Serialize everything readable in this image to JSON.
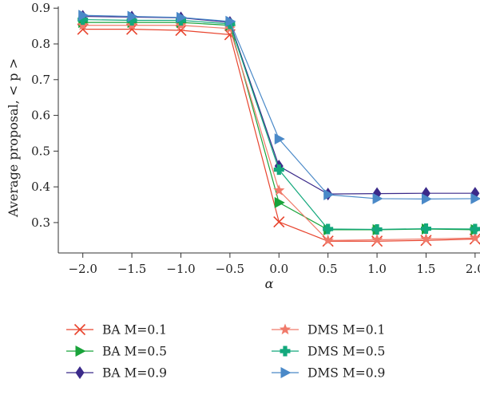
{
  "chart_data": {
    "type": "line",
    "xlabel": "α",
    "ylabel": "Average proposal, < p >",
    "x": [
      -2.0,
      -1.5,
      -1.0,
      -0.5,
      0.0,
      0.5,
      1.0,
      1.5,
      2.0
    ],
    "x_tick_labels": [
      "−2.0",
      "−1.5",
      "−1.0",
      "−0.5",
      "0.0",
      "0.5",
      "1.0",
      "1.5",
      "2.0"
    ],
    "y_ticks": [
      0.3,
      0.4,
      0.5,
      0.6,
      0.7,
      0.8,
      0.9
    ],
    "y_tick_labels": [
      "0.3",
      "0.4",
      "0.5",
      "0.6",
      "0.7",
      "0.8",
      "0.9"
    ],
    "xlim": [
      -2.25,
      2.05
    ],
    "ylim": [
      0.215,
      0.905
    ],
    "grid": false,
    "legend_position": "bottom",
    "series": [
      {
        "name": "BA M=0.1",
        "color": "#e8442e",
        "marker": "x",
        "values": [
          0.841,
          0.841,
          0.838,
          0.826,
          0.302,
          0.248,
          0.248,
          0.25,
          0.254
        ]
      },
      {
        "name": "BA M=0.5",
        "color": "#19a33a",
        "marker": "triangle-right",
        "values": [
          0.86,
          0.86,
          0.86,
          0.852,
          0.356,
          0.28,
          0.28,
          0.282,
          0.28
        ]
      },
      {
        "name": "BA M=0.9",
        "color": "#3b2a8a",
        "marker": "diamond",
        "values": [
          0.877,
          0.875,
          0.873,
          0.86,
          0.458,
          0.38,
          0.381,
          0.382,
          0.382
        ]
      },
      {
        "name": "DMS M=0.1",
        "color": "#f07a6a",
        "marker": "star",
        "values": [
          0.852,
          0.852,
          0.852,
          0.843,
          0.39,
          0.25,
          0.252,
          0.254,
          0.257
        ]
      },
      {
        "name": "DMS M=0.5",
        "color": "#13a87c",
        "marker": "plus",
        "values": [
          0.868,
          0.866,
          0.866,
          0.856,
          0.448,
          0.282,
          0.281,
          0.283,
          0.282
        ]
      },
      {
        "name": "DMS M=0.9",
        "color": "#4a89c8",
        "marker": "triangle-right",
        "values": [
          0.88,
          0.877,
          0.874,
          0.863,
          0.534,
          0.378,
          0.367,
          0.366,
          0.367
        ]
      }
    ]
  }
}
